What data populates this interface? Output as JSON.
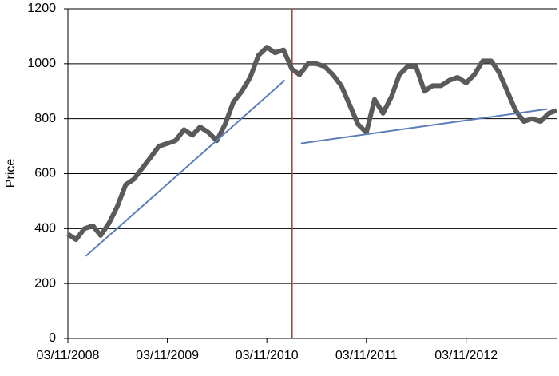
{
  "chart_data": {
    "type": "line",
    "y_label": "Price",
    "x": [
      "03/11/2008",
      "03/12/2008",
      "03/01/2009",
      "03/02/2009",
      "03/03/2009",
      "03/04/2009",
      "03/05/2009",
      "03/06/2009",
      "03/07/2009",
      "03/08/2009",
      "03/09/2009",
      "03/10/2009",
      "03/11/2009",
      "03/12/2009",
      "03/01/2010",
      "03/02/2010",
      "03/03/2010",
      "03/04/2010",
      "03/05/2010",
      "03/06/2010",
      "03/07/2010",
      "03/08/2010",
      "03/09/2010",
      "03/10/2010",
      "03/11/2010",
      "03/12/2010",
      "03/01/2011",
      "03/02/2011",
      "03/03/2011",
      "03/04/2011",
      "03/05/2011",
      "03/06/2011",
      "03/07/2011",
      "03/08/2011",
      "03/09/2011",
      "03/10/2011",
      "03/11/2011",
      "03/12/2011",
      "03/01/2012",
      "03/02/2012",
      "03/03/2012",
      "03/04/2012",
      "03/05/2012",
      "03/06/2012",
      "03/07/2012",
      "03/08/2012",
      "03/09/2012",
      "03/10/2012",
      "03/11/2012",
      "03/12/2012",
      "03/01/2013",
      "03/02/2013",
      "03/03/2013",
      "03/04/2013",
      "03/05/2013",
      "03/06/2013",
      "03/07/2013",
      "03/08/2013",
      "03/09/2013",
      "01/10/2013"
    ],
    "series": [
      {
        "color": "#5a5a5a",
        "values": [
          380,
          360,
          400,
          410,
          375,
          420,
          480,
          560,
          580,
          620,
          660,
          700,
          710,
          720,
          760,
          740,
          770,
          750,
          720,
          780,
          860,
          900,
          950,
          1030,
          1060,
          1040,
          1050,
          980,
          960,
          1000,
          1000,
          990,
          960,
          920,
          850,
          780,
          750,
          870,
          820,
          880,
          960,
          990,
          990,
          900,
          920,
          920,
          940,
          950,
          930,
          960,
          1010,
          1010,
          970,
          900,
          830,
          790,
          800,
          790,
          820,
          830
        ]
      }
    ],
    "trendlines": [
      {
        "color": "#5b7db8",
        "x": [
          "08/01/2009",
          "08/01/2011"
        ],
        "values": [
          300,
          940
        ]
      },
      {
        "color": "#5b7db8",
        "x": [
          "08/03/2011",
          "27/08/2013"
        ],
        "values": [
          710,
          835
        ]
      }
    ],
    "vline": {
      "color": "#a0463a",
      "x": "03/02/2011"
    },
    "xlim": [
      "03/11/2008",
      "01/10/2013"
    ],
    "xticks": [
      "03/11/2008",
      "03/11/2009",
      "03/11/2010",
      "03/11/2011",
      "03/11/2012"
    ],
    "ylim": [
      0,
      1200
    ],
    "yticks": [
      0,
      200,
      400,
      600,
      800,
      1000,
      1200
    ],
    "grid": true
  }
}
